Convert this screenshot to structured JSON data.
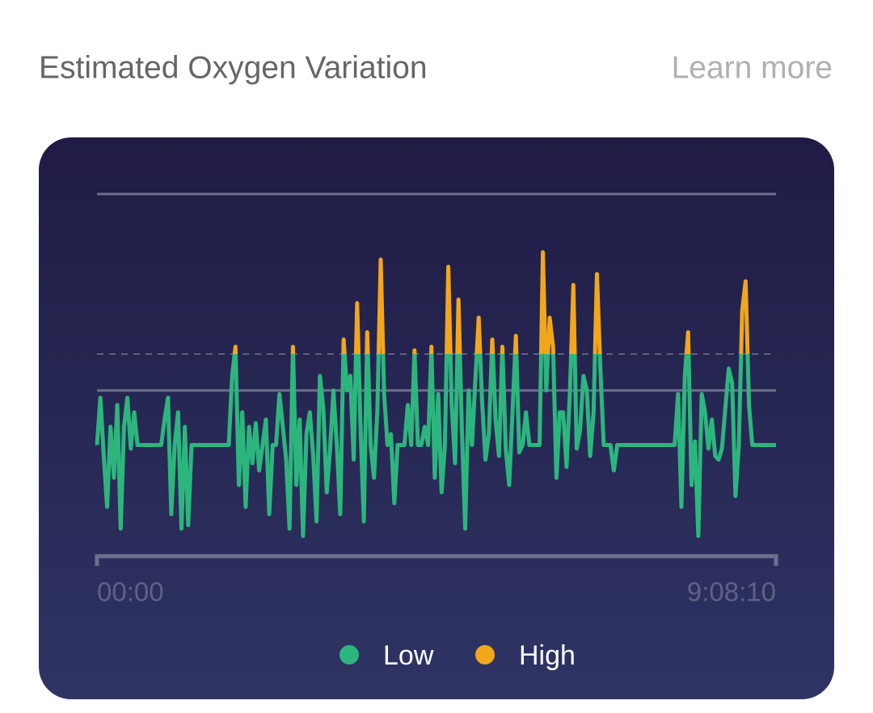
{
  "header": {
    "title": "Estimated Oxygen Variation",
    "link": "Learn more"
  },
  "chart_data": {
    "type": "line",
    "xlim": [
      0,
      32890
    ],
    "xticks": [
      {
        "value": 0,
        "label": "00:00"
      },
      {
        "value": 32890,
        "label": "9:08:10"
      }
    ],
    "ylim": [
      0,
      100
    ],
    "hlines": [
      100,
      46
    ],
    "threshold": 56,
    "series": [
      {
        "values": [
          31,
          44,
          28,
          14,
          36,
          22,
          42,
          8,
          36,
          44,
          30,
          40,
          31,
          31,
          31,
          31,
          31,
          31,
          31,
          31,
          38,
          44,
          12,
          31,
          40,
          8,
          36,
          9,
          31,
          31,
          31,
          31,
          31,
          31,
          31,
          31,
          31,
          31,
          31,
          31,
          50,
          58,
          20,
          40,
          14,
          36,
          26,
          37,
          24,
          31,
          38,
          12,
          31,
          31,
          45,
          36,
          27,
          8,
          58,
          20,
          38,
          6,
          34,
          40,
          28,
          10,
          50,
          41,
          18,
          30,
          46,
          31,
          12,
          60,
          46,
          50,
          27,
          70,
          36,
          10,
          62,
          31,
          22,
          41,
          82,
          45,
          31,
          34,
          15,
          31,
          31,
          31,
          42,
          31,
          57,
          31,
          31,
          36,
          31,
          58,
          22,
          45,
          18,
          31,
          80,
          42,
          26,
          71,
          36,
          8,
          46,
          31,
          49,
          66,
          43,
          27,
          34,
          60,
          38,
          28,
          58,
          30,
          20,
          40,
          61,
          29,
          31,
          40,
          31,
          31,
          31,
          31,
          84,
          46,
          66,
          58,
          22,
          40,
          40,
          25,
          46,
          75,
          30,
          35,
          50,
          46,
          28,
          40,
          78,
          52,
          31,
          31,
          31,
          24,
          31,
          31,
          31,
          31,
          31,
          31,
          31,
          31,
          31,
          31,
          31,
          31,
          31,
          31,
          31,
          31,
          31,
          31,
          45,
          14,
          50,
          62,
          20,
          32,
          6,
          45,
          40,
          30,
          38,
          28,
          27,
          30,
          41,
          52,
          48,
          17,
          31,
          68,
          76,
          42,
          31,
          31,
          31,
          31,
          31,
          31,
          31,
          31
        ]
      }
    ],
    "legend": [
      {
        "name": "Low",
        "color": "#2cb67d"
      },
      {
        "name": "High",
        "color": "#f2a71b"
      }
    ]
  }
}
